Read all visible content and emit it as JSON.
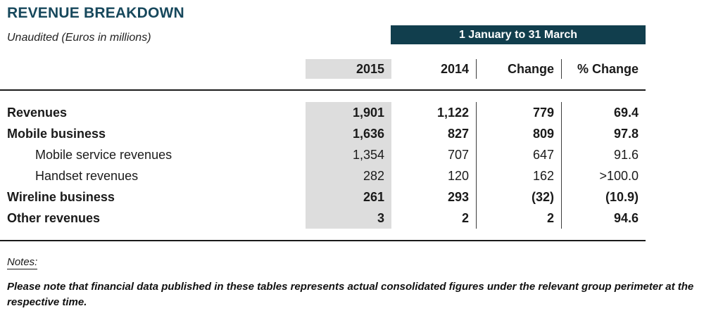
{
  "title": "REVENUE BREAKDOWN",
  "subtitle": "Unaudited (Euros in millions)",
  "period_banner": "1 January to 31 March",
  "columns": [
    "2015",
    "2014",
    "Change",
    "% Change"
  ],
  "rows": [
    {
      "label": "Revenues",
      "bold": true,
      "indent": false,
      "values": [
        "1,901",
        "1,122",
        "779",
        "69.4"
      ]
    },
    {
      "label": "Mobile business",
      "bold": true,
      "indent": false,
      "values": [
        "1,636",
        "827",
        "809",
        "97.8"
      ]
    },
    {
      "label": "Mobile service revenues",
      "bold": false,
      "indent": true,
      "values": [
        "1,354",
        "707",
        "647",
        "91.6"
      ]
    },
    {
      "label": "Handset revenues",
      "bold": false,
      "indent": true,
      "values": [
        "282",
        "120",
        "162",
        ">100.0"
      ]
    },
    {
      "label": "Wireline business",
      "bold": true,
      "indent": false,
      "values": [
        "261",
        "293",
        "(32)",
        "(10.9)"
      ]
    },
    {
      "label": "Other revenues",
      "bold": true,
      "indent": false,
      "values": [
        "3",
        "2",
        "2",
        "94.6"
      ]
    }
  ],
  "notes": {
    "heading": "Notes:",
    "body": "Please note that financial data published in these tables represents actual consolidated figures under the relevant group perimeter at the respective time."
  },
  "colors": {
    "accent_teal": "#17485c",
    "banner_background": "#113e4d",
    "highlight_gray": "#dddddd"
  }
}
